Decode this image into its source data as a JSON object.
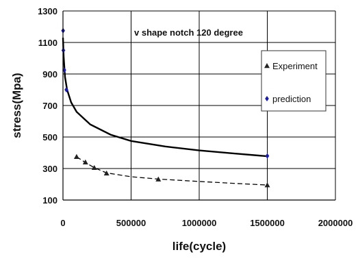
{
  "chart_data": {
    "type": "scatter",
    "title": "",
    "annotation": "v shape notch 120 degree",
    "xlabel": "life(cycle)",
    "ylabel": "stress(Mpa)",
    "xlim": [
      0,
      2000000
    ],
    "ylim": [
      100,
      1300
    ],
    "x_ticks": [
      0,
      500000,
      1000000,
      1500000,
      2000000
    ],
    "x_tick_labels": [
      "0",
      "500000",
      "1000000",
      "1500000",
      "2000000"
    ],
    "y_ticks": [
      100,
      300,
      500,
      700,
      900,
      1100,
      1300
    ],
    "y_tick_labels": [
      "100",
      "300",
      "500",
      "700",
      "900",
      "1100",
      "1300"
    ],
    "grid": {
      "horizontal": true,
      "vertical": true
    },
    "legend_position": "right",
    "series": [
      {
        "name": "Experiment",
        "marker": "triangle",
        "color": "#222222",
        "points": [
          {
            "x": 100000,
            "y": 375
          },
          {
            "x": 165000,
            "y": 340
          },
          {
            "x": 230000,
            "y": 305
          },
          {
            "x": 320000,
            "y": 270
          },
          {
            "x": 700000,
            "y": 232
          },
          {
            "x": 1500000,
            "y": 195
          }
        ]
      },
      {
        "name": "prediction",
        "marker": "diamond",
        "color": "#1a1aa8",
        "points": [
          {
            "x": 1000,
            "y": 1175
          },
          {
            "x": 3000,
            "y": 1050
          },
          {
            "x": 10000,
            "y": 925
          },
          {
            "x": 25000,
            "y": 800
          },
          {
            "x": 1500000,
            "y": 380
          }
        ]
      }
    ],
    "fit_lines": [
      {
        "style": "solid",
        "color": "#000000",
        "points": [
          {
            "x": 0,
            "y": 1130
          },
          {
            "x": 5000,
            "y": 1010
          },
          {
            "x": 15000,
            "y": 880
          },
          {
            "x": 30000,
            "y": 800
          },
          {
            "x": 60000,
            "y": 720
          },
          {
            "x": 100000,
            "y": 660
          },
          {
            "x": 200000,
            "y": 580
          },
          {
            "x": 350000,
            "y": 515
          },
          {
            "x": 500000,
            "y": 475
          },
          {
            "x": 750000,
            "y": 440
          },
          {
            "x": 1000000,
            "y": 415
          },
          {
            "x": 1250000,
            "y": 396
          },
          {
            "x": 1500000,
            "y": 378
          }
        ]
      },
      {
        "style": "dashed",
        "color": "#000000",
        "points": [
          {
            "x": 100000,
            "y": 375
          },
          {
            "x": 165000,
            "y": 338
          },
          {
            "x": 230000,
            "y": 305
          },
          {
            "x": 320000,
            "y": 272
          },
          {
            "x": 500000,
            "y": 248
          },
          {
            "x": 700000,
            "y": 233
          },
          {
            "x": 1000000,
            "y": 218
          },
          {
            "x": 1250000,
            "y": 206
          },
          {
            "x": 1500000,
            "y": 195
          }
        ]
      }
    ]
  }
}
